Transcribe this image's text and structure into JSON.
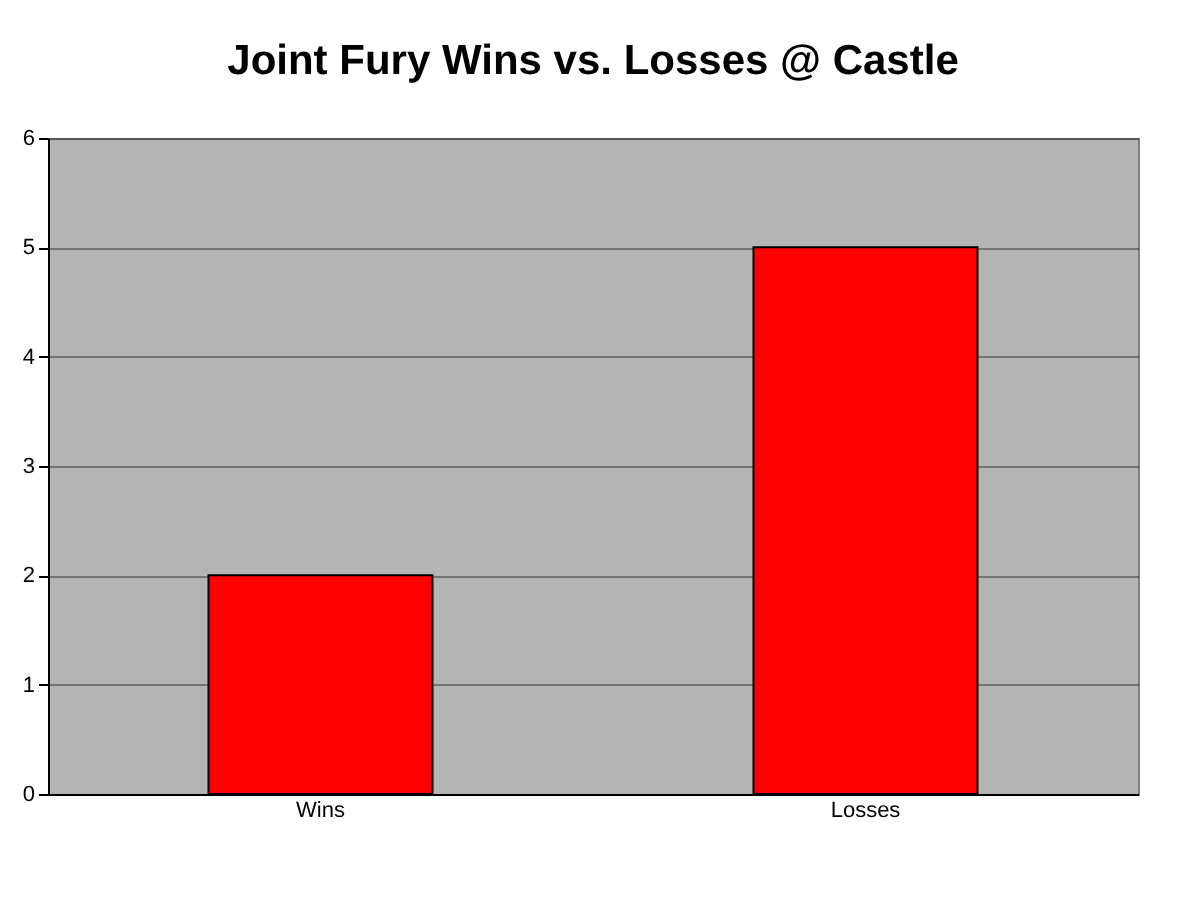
{
  "chart_data": {
    "type": "bar",
    "title": "Joint Fury Wins vs. Losses @ Castle",
    "categories": [
      "Wins",
      "Losses"
    ],
    "values": [
      2,
      5
    ],
    "color": "#ff0000",
    "ylim": [
      0,
      6
    ],
    "yticks": [
      0,
      1,
      2,
      3,
      4,
      5,
      6
    ],
    "grid": "y"
  }
}
